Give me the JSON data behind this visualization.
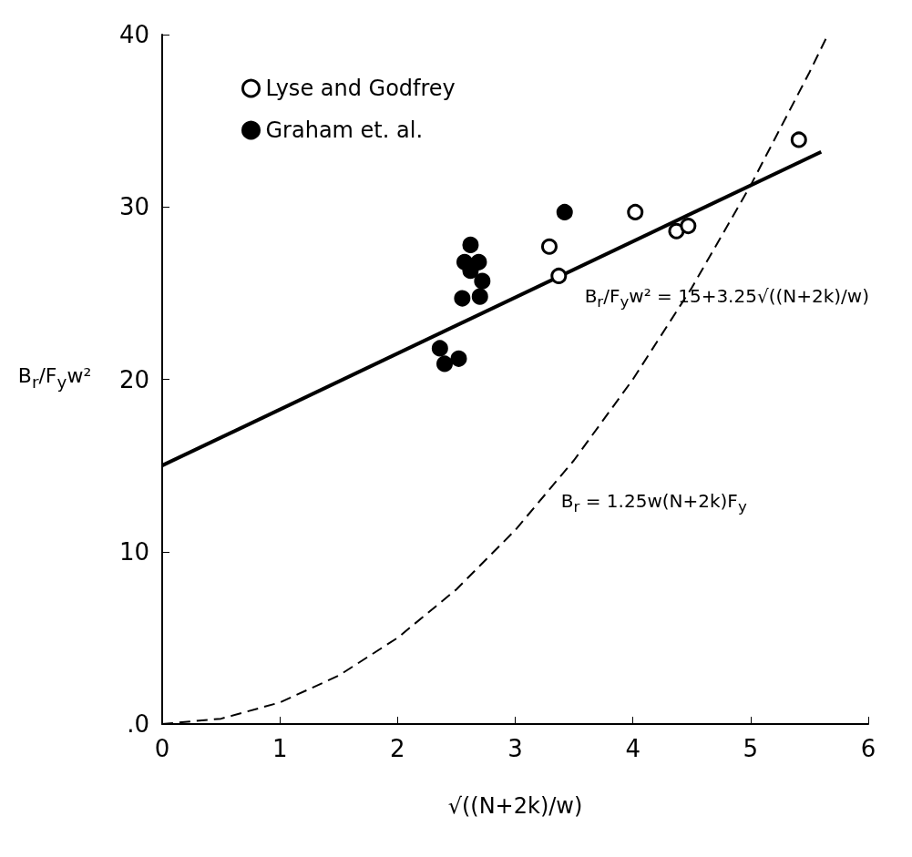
{
  "chart_data": {
    "type": "scatter",
    "xlabel": "√((N+2k)/w)",
    "ylabel": "B$_{r}$/F$_{y}$w²",
    "xlim": [
      0,
      6
    ],
    "ylim": [
      0,
      40
    ],
    "xticks": [
      0,
      1,
      2,
      3,
      4,
      5,
      6
    ],
    "yticks": [
      {
        "value": 0,
        "label": ".0"
      },
      10,
      20,
      30,
      40
    ],
    "grid": false,
    "legend": "top left",
    "marker": "circle",
    "series": [
      {
        "name": "Lyse and Godfrey",
        "color": "#ffffff",
        "x": [
          3.29,
          3.37,
          4.02,
          4.37,
          4.47,
          5.41
        ],
        "values": [
          27.7,
          26.0,
          29.7,
          28.6,
          28.9,
          33.9
        ]
      },
      {
        "name": "Graham et. al.",
        "color": "#000000",
        "x": [
          3.42,
          2.62,
          2.57,
          2.69,
          2.62,
          2.72,
          2.55,
          2.7,
          2.36,
          2.4,
          2.52
        ],
        "values": [
          29.7,
          27.8,
          26.8,
          26.8,
          26.3,
          25.7,
          24.7,
          24.8,
          21.8,
          20.9,
          21.2
        ]
      },
      {
        "type": "line",
        "color": "#000000",
        "line_style": "solid",
        "marker": "none",
        "x": [
          0,
          5.6
        ],
        "values": [
          15,
          33.2
        ]
      },
      {
        "type": "line",
        "color": "#000000",
        "line_style": "dashed",
        "marker": "none",
        "x": [
          0,
          0.5,
          1,
          1.5,
          2,
          2.5,
          3,
          3.5,
          4,
          4.5,
          5,
          5.5,
          5.65
        ],
        "values": [
          0,
          0.31,
          1.25,
          2.81,
          5,
          7.81,
          11.25,
          15.31,
          20,
          25.31,
          31.25,
          37.81,
          39.9
        ]
      }
    ],
    "annotations": [
      {
        "text": "B$_{r}$/F$_{y}$w² = 15+3.25√((N+2k)/w)",
        "x": 3.45,
        "y": 26.2
      },
      {
        "text": "B$_{r}$ = 1.25w(N+2k)F$_{y}$",
        "x": 3.25,
        "y": 13.5
      }
    ]
  }
}
